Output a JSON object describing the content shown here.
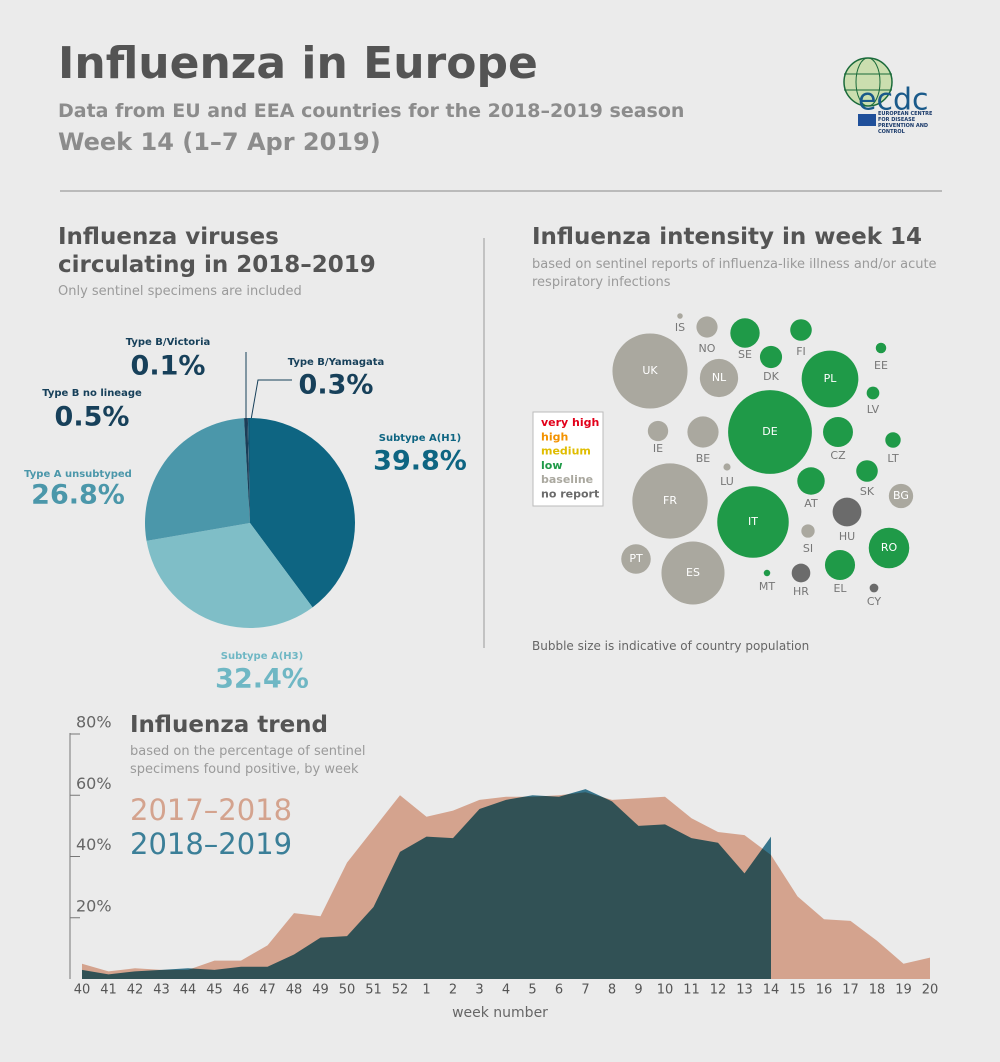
{
  "header": {
    "title": "Influenza in Europe",
    "subtitle": "Data from EU and EEA countries for the 2018–2019 season",
    "week": "Week 14 (1–7 Apr 2019)"
  },
  "logo": {
    "name": "ecdc",
    "full_name": "EUROPEAN CENTRE FOR DISEASE PREVENTION AND CONTROL"
  },
  "chart_data": [
    {
      "type": "pie",
      "title": "Influenza viruses circulating in 2018–2019",
      "subtitle": "Only sentinel specimens are included",
      "categories": [
        "Subtype A(H1)",
        "Subtype A(H3)",
        "Type A unsubtyped",
        "Type B no lineage",
        "Type B/Victoria",
        "Type B/Yamagata"
      ],
      "values": [
        39.8,
        32.4,
        26.8,
        0.5,
        0.1,
        0.3
      ],
      "value_labels": [
        "39.8%",
        "32.4%",
        "26.8%",
        "0.5%",
        "0.1%",
        "0.3%"
      ],
      "colors": [
        "#0e6582",
        "#7fbec7",
        "#4b97aa",
        "#1b3d57",
        "#25415e",
        "#0e5b78"
      ],
      "label_colors": [
        "#0e6582",
        "#6fb7c4",
        "#4b97aa",
        "#17405a",
        "#17405a",
        "#17405a"
      ]
    },
    {
      "type": "bubble",
      "title": "Influenza intensity in week 14",
      "subtitle": "based on sentinel reports of influenza-like illness and/or acute respiratory infections",
      "note": "Bubble size is indicative of country population",
      "legend": [
        {
          "name": "very high",
          "color": "#e2001a"
        },
        {
          "name": "high",
          "color": "#f39200"
        },
        {
          "name": "medium",
          "color": "#e0bd00"
        },
        {
          "name": "low",
          "color": "#1f9a48"
        },
        {
          "name": "baseline",
          "color": "#aaa89f"
        },
        {
          "name": "no report",
          "color": "#6b6b6b"
        }
      ],
      "categories": [
        "IS",
        "NO",
        "SE",
        "FI",
        "EE",
        "DK",
        "NL",
        "UK",
        "PL",
        "LV",
        "DE",
        "IE",
        "BE",
        "LU",
        "CZ",
        "LT",
        "FR",
        "AT",
        "SK",
        "BG",
        "HU",
        "IT",
        "SI",
        "RO",
        "PT",
        "ES",
        "MT",
        "HR",
        "EL",
        "CY"
      ],
      "intensity": [
        "baseline",
        "baseline",
        "low",
        "low",
        "low",
        "low",
        "baseline",
        "baseline",
        "low",
        "low",
        "low",
        "baseline",
        "baseline",
        "baseline",
        "low",
        "low",
        "baseline",
        "low",
        "low",
        "baseline",
        "no report",
        "low",
        "baseline",
        "low",
        "baseline",
        "baseline",
        "low",
        "no report",
        "low",
        "no report"
      ],
      "size": [
        0.36,
        5.3,
        10.2,
        5.5,
        1.3,
        5.8,
        17.3,
        66.6,
        38.0,
        1.9,
        83.0,
        4.9,
        11.5,
        0.6,
        10.6,
        2.8,
        67.0,
        8.9,
        5.5,
        7.0,
        9.8,
        60.4,
        2.1,
        19.4,
        10.3,
        47.0,
        0.5,
        4.1,
        10.7,
        0.9
      ]
    },
    {
      "type": "area",
      "title": "Influenza trend",
      "subtitle": "based on the percentage of sentinel specimens found positive, by week",
      "xlabel": "week number",
      "categories": [
        "40",
        "41",
        "42",
        "43",
        "44",
        "45",
        "46",
        "47",
        "48",
        "49",
        "50",
        "51",
        "52",
        "1",
        "2",
        "3",
        "4",
        "5",
        "6",
        "7",
        "8",
        "9",
        "10",
        "11",
        "12",
        "13",
        "14",
        "15",
        "16",
        "17",
        "18",
        "19",
        "20"
      ],
      "ylim": [
        0,
        80
      ],
      "yticks": [
        {
          "value": 20,
          "label": "20%"
        },
        {
          "value": 40,
          "label": "40%"
        },
        {
          "value": 60,
          "label": "60%"
        },
        {
          "value": 80,
          "label": "80%"
        }
      ],
      "series": [
        {
          "name": "2017–2018",
          "color": "#d4a38e",
          "values": [
            5,
            2.5,
            3.5,
            3,
            3,
            6,
            6,
            11,
            21.5,
            20.5,
            38,
            49,
            60,
            53,
            55,
            58.5,
            59.5,
            59.5,
            60,
            61,
            58.5,
            59,
            59.5,
            52.5,
            48,
            47,
            40.5,
            27,
            19.5,
            19,
            12.5,
            5,
            7
          ]
        },
        {
          "name": "2018–2019",
          "color": "#3b7f98",
          "values": [
            3,
            1.5,
            2.5,
            3,
            3.5,
            3,
            4,
            4,
            8,
            13.5,
            14,
            23.5,
            41.5,
            46.5,
            46,
            55.5,
            58.5,
            60,
            59.5,
            62,
            58,
            50,
            50.5,
            46,
            44.5,
            34.5,
            46.5,
            null,
            null,
            null,
            null,
            null,
            null
          ]
        }
      ]
    }
  ]
}
